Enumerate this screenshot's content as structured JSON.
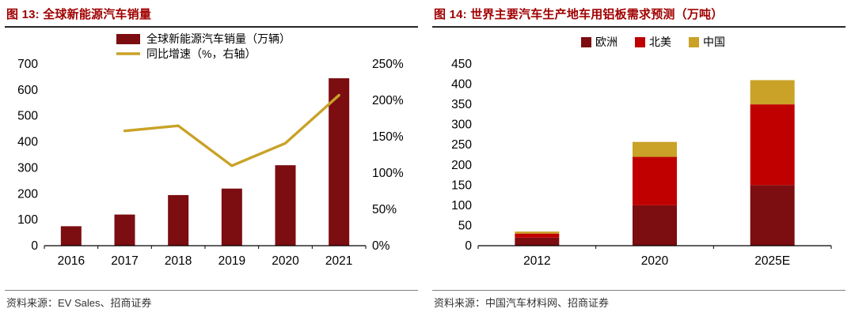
{
  "colors": {
    "title_red": "#A00000",
    "maroon": "#7C0D11",
    "red": "#C00000",
    "gold": "#C9A227",
    "axis_text": "#000000",
    "source_text": "#333333"
  },
  "chart_data": [
    {
      "type": "bar+line",
      "panel": "left",
      "title": "图 13: 全球新能源汽车销量",
      "categories": [
        "2016",
        "2017",
        "2018",
        "2019",
        "2020",
        "2021"
      ],
      "series": [
        {
          "name": "全球新能源汽车销量（万辆）",
          "type": "bar",
          "axis": "left",
          "color": "#7C0D11",
          "values": [
            75,
            120,
            195,
            220,
            310,
            645
          ]
        },
        {
          "name": "同比增速（%，右轴）",
          "type": "line",
          "axis": "right",
          "color": "#C9A227",
          "values": [
            null,
            158,
            165,
            110,
            141,
            207
          ]
        }
      ],
      "left_axis": {
        "min": 0,
        "max": 700,
        "step": 100
      },
      "right_axis": {
        "min": 0,
        "max": 250,
        "step": 50,
        "suffix": "%"
      },
      "legend_position": "top",
      "grid": false,
      "source": "资料来源：EV Sales、招商证券"
    },
    {
      "type": "stacked-bar",
      "panel": "right",
      "title": "图 14: 世界主要汽车生产地车用铝板需求预测（万吨）",
      "categories": [
        "2012",
        "2020",
        "2025E"
      ],
      "series": [
        {
          "name": "欧洲",
          "color": "#7C0D11",
          "values": [
            20,
            100,
            150
          ]
        },
        {
          "name": "北美",
          "color": "#C00000",
          "values": [
            10,
            120,
            200
          ]
        },
        {
          "name": "中国",
          "color": "#C9A227",
          "values": [
            5,
            37,
            60
          ]
        }
      ],
      "y_axis": {
        "min": 0,
        "max": 450,
        "step": 50
      },
      "legend_position": "top",
      "grid": false,
      "source": "资料来源：中国汽车材料网、招商证券"
    }
  ]
}
